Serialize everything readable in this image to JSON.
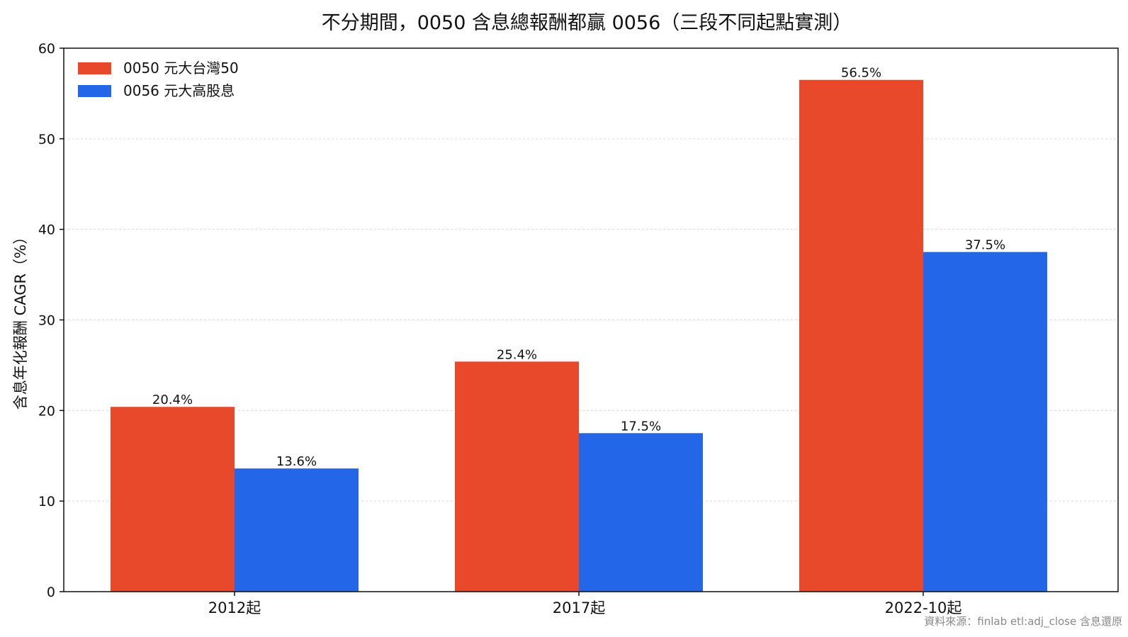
{
  "chart_data": {
    "type": "bar",
    "title": "不分期間，0050 含息總報酬都贏 0056（三段不同起點實測）",
    "xlabel": "",
    "ylabel": "含息年化報酬 CAGR（%）",
    "categories": [
      "2012起",
      "2017起",
      "2022-10起"
    ],
    "series": [
      {
        "name": "0050 元大台灣50",
        "color": "#E8492B",
        "values": [
          20.4,
          25.4,
          56.5
        ],
        "labels": [
          "20.4%",
          "25.4%",
          "56.5%"
        ]
      },
      {
        "name": "0056 元大高股息",
        "color": "#2466E8",
        "values": [
          13.6,
          17.5,
          37.5
        ],
        "labels": [
          "13.6%",
          "17.5%",
          "37.5%"
        ]
      }
    ],
    "ylim": [
      0,
      60
    ],
    "yticks": [
      0,
      10,
      20,
      30,
      40,
      50,
      60
    ],
    "grid": true,
    "legend_position": "top-left",
    "source": "資料來源：finlab etl:adj_close 含息還原"
  }
}
